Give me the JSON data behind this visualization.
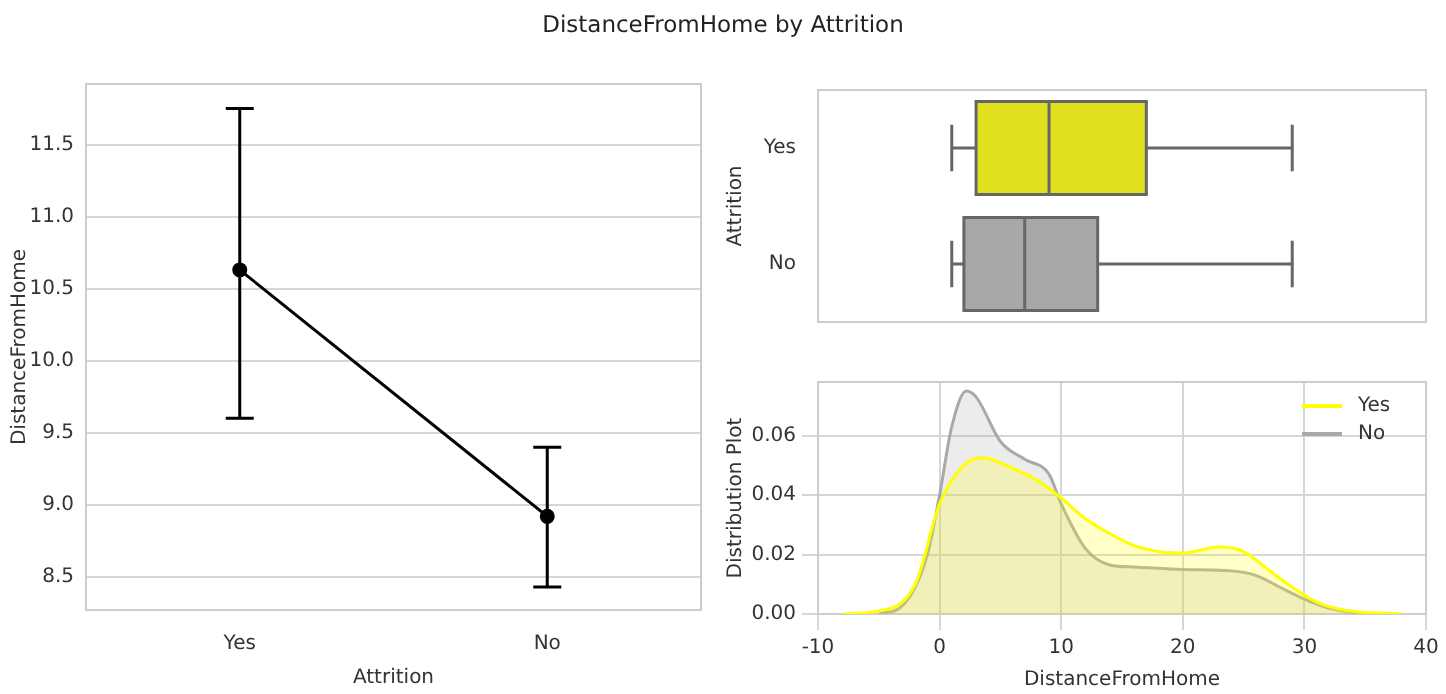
{
  "chart_data": [
    {
      "type": "line",
      "title": "DistanceFromHome by Attrition",
      "categories": [
        "Yes",
        "No"
      ],
      "xlabel": "Attrition",
      "ylabel": "DistanceFromHome",
      "series": [
        {
          "color": "#000000",
          "values": [
            10.63,
            8.92
          ],
          "errors": [
            [
              9.6,
              11.75
            ],
            [
              8.43,
              9.4
            ]
          ]
        }
      ],
      "ylim": [
        8.27,
        11.92
      ],
      "yticks": [
        8.5,
        {
          "value": 9,
          "label": "9.0"
        },
        9.5,
        {
          "value": 10,
          "label": "10.0"
        },
        10.5,
        {
          "value": 11,
          "label": "11.0"
        },
        11.5
      ],
      "grid": "y",
      "marker": "circle",
      "line_style": "solid",
      "legend": false
    },
    {
      "type": "box",
      "orientation": "horizontal",
      "categories": [
        "Yes",
        "No"
      ],
      "ylabel": "Attrition",
      "xlim": [
        -10,
        40
      ],
      "tick_labels": "y",
      "grid": false,
      "legend": false,
      "series": [
        {
          "colors": [
            "#e0e01e",
            "#a8a8a8"
          ],
          "boxes": [
            {
              "low": 1,
              "q1": 3,
              "median": 9,
              "q3": 17,
              "high": 29
            },
            {
              "low": 1,
              "q1": 2,
              "median": 7,
              "q3": 13,
              "high": 29
            }
          ]
        }
      ]
    },
    {
      "type": "area",
      "xlabel": "DistanceFromHome",
      "ylabel": "Distribution Plot",
      "xlim": [
        -10,
        40
      ],
      "xticks": [
        -10,
        0,
        10,
        20,
        30,
        40
      ],
      "ylim": [
        0,
        0.078
      ],
      "yticks": [
        {
          "value": 0,
          "label": "0.00"
        },
        0.02,
        0.04,
        0.06
      ],
      "grid": true,
      "legend": "top right",
      "series": [
        {
          "name": "Yes",
          "color": "#ffff00",
          "x": [
            -8,
            -5,
            -2,
            0,
            2,
            3.5,
            6,
            8,
            10,
            12,
            14,
            16,
            18,
            20,
            23,
            25,
            27,
            29,
            31,
            33,
            35,
            38
          ],
          "values": [
            0,
            0.001,
            0.01,
            0.037,
            0.05,
            0.0525,
            0.049,
            0.045,
            0.039,
            0.032,
            0.027,
            0.023,
            0.021,
            0.0205,
            0.0225,
            0.021,
            0.015,
            0.009,
            0.004,
            0.0015,
            0.0005,
            0
          ]
        },
        {
          "name": "No",
          "color": "#a9a9a9",
          "x": [
            -5,
            -3,
            -1,
            0,
            1,
            2.2,
            3,
            5,
            7,
            9,
            10,
            12,
            14,
            16,
            20,
            24,
            26,
            28,
            30,
            32,
            35
          ],
          "values": [
            0,
            0.003,
            0.02,
            0.04,
            0.063,
            0.075,
            0.073,
            0.058,
            0.052,
            0.047,
            0.037,
            0.022,
            0.0165,
            0.0158,
            0.015,
            0.0145,
            0.013,
            0.009,
            0.005,
            0.002,
            0
          ]
        }
      ]
    }
  ]
}
